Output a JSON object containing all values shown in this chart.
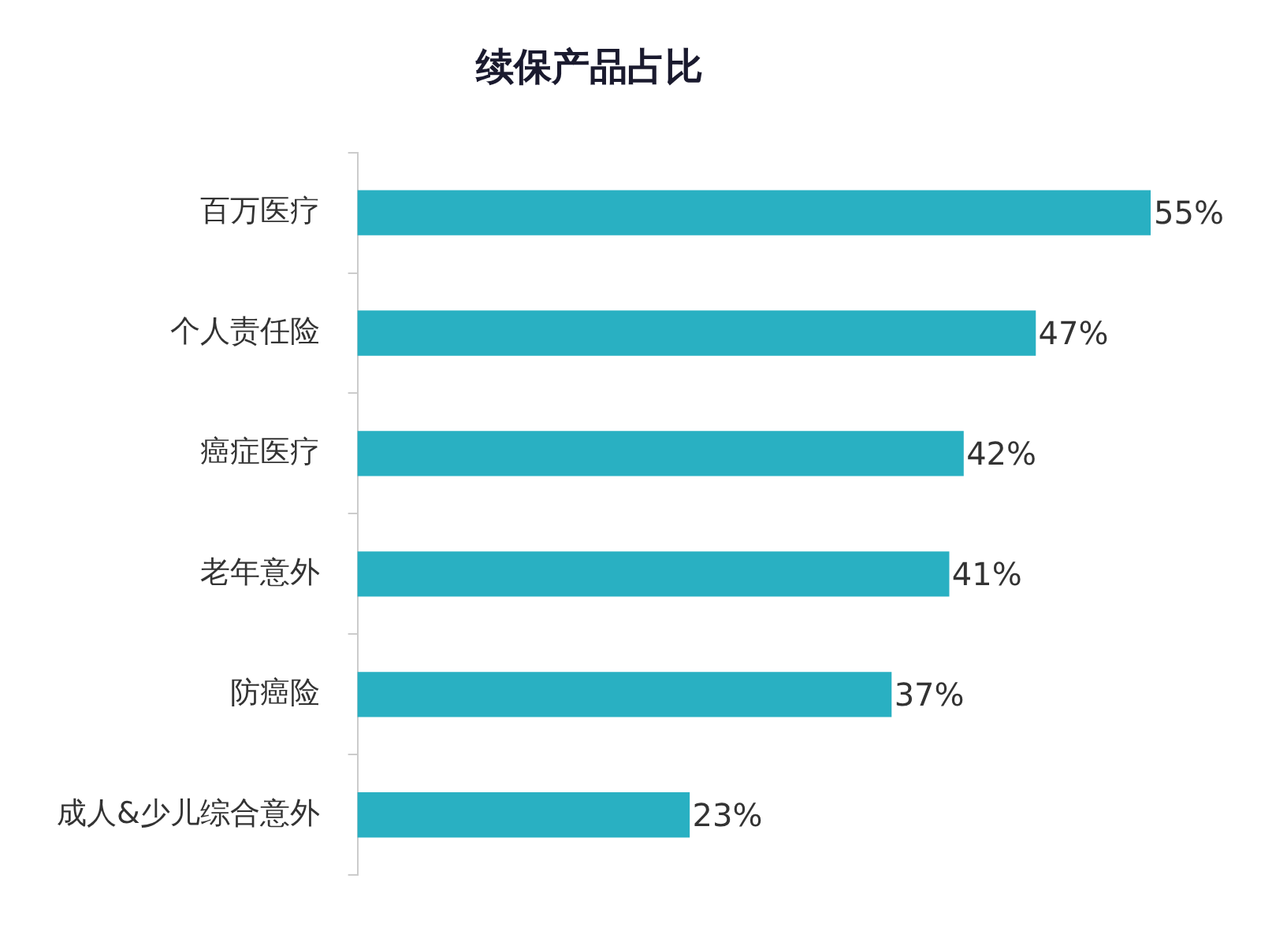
{
  "chart_data": {
    "type": "bar",
    "orientation": "horizontal",
    "title": "续保产品占比",
    "categories": [
      "百万医疗",
      "个人责任险",
      "癌症医疗",
      "老年意外",
      "防癌险",
      "成人&少儿综合意外"
    ],
    "values": [
      55,
      47,
      42,
      41,
      37,
      23
    ],
    "value_labels": [
      "55%",
      "47%",
      "42%",
      "41%",
      "37%",
      "23%"
    ],
    "color": "#29b0c2",
    "grid": false,
    "legend": false,
    "tick_labels": "y"
  }
}
